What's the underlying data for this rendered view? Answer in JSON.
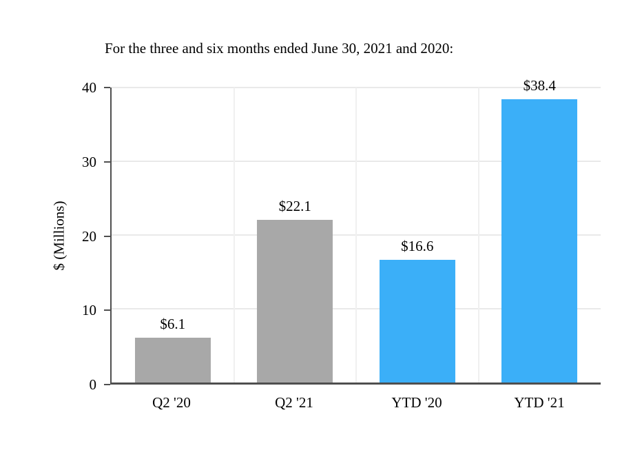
{
  "chart_data": {
    "type": "bar",
    "title": "For the three and six months ended June 30, 2021 and 2020:",
    "categories": [
      "Q2 '20",
      "Q2 '21",
      "YTD '20",
      "YTD '21"
    ],
    "values": [
      6.1,
      22.1,
      16.6,
      38.4
    ],
    "labels": [
      "$6.1",
      "$22.1",
      "$16.6",
      "$38.4"
    ],
    "bar_colors": [
      "#a8a8a8",
      "#a8a8a8",
      "#3baff8",
      "#3baff8"
    ],
    "xlabel": "",
    "ylabel": "$ (Millions)",
    "ylim": [
      0,
      40
    ],
    "yticks": [
      0,
      10,
      20,
      30,
      40
    ],
    "grid": true,
    "legend": "none",
    "gridline_color": "#e9e9e9",
    "axis_color": "#4f4f4f",
    "background_color": "#ffffff"
  }
}
